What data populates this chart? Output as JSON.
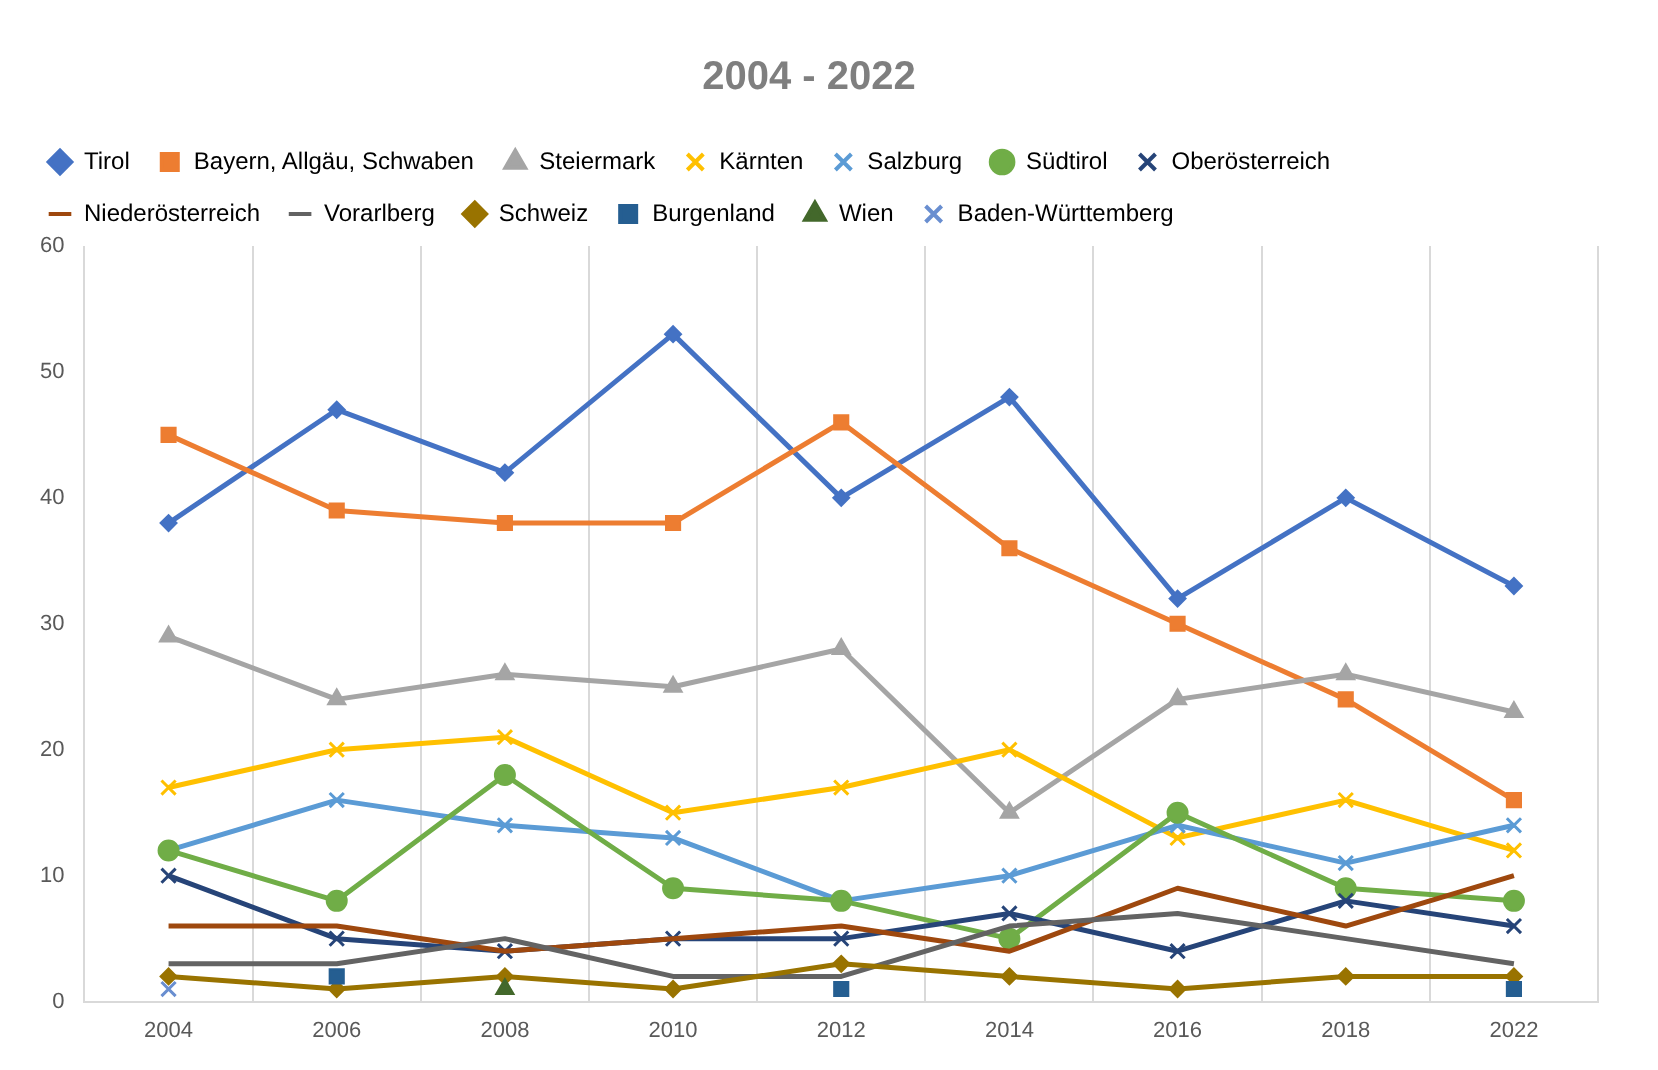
{
  "chart_data": {
    "type": "line",
    "title": "2004 - 2022",
    "categories": [
      "2004",
      "2006",
      "2008",
      "2010",
      "2012",
      "2014",
      "2016",
      "2018",
      "2022"
    ],
    "ylim": [
      0,
      60
    ],
    "yticks": [
      0,
      10,
      20,
      30,
      40,
      50,
      60
    ],
    "grid": "x",
    "legend": "top",
    "series": [
      {
        "name": "Tirol",
        "color": "#4472c4",
        "marker": "diamond",
        "values": [
          38,
          47,
          42,
          53,
          40,
          48,
          32,
          40,
          33
        ]
      },
      {
        "name": "Bayern, Allgäu, Schwaben",
        "color": "#ed7d31",
        "marker": "square",
        "values": [
          45,
          39,
          38,
          38,
          46,
          36,
          30,
          24,
          16
        ]
      },
      {
        "name": "Steiermark",
        "color": "#a5a5a5",
        "marker": "triangle",
        "values": [
          29,
          24,
          26,
          25,
          28,
          15,
          24,
          26,
          23
        ]
      },
      {
        "name": "Kärnten",
        "color": "#ffc000",
        "marker": "cross",
        "values": [
          17,
          20,
          21,
          15,
          17,
          20,
          13,
          16,
          12
        ]
      },
      {
        "name": "Salzburg",
        "color": "#5b9bd5",
        "marker": "cross",
        "values": [
          12,
          16,
          14,
          13,
          8,
          10,
          14,
          11,
          14
        ]
      },
      {
        "name": "Südtirol",
        "color": "#70ad47",
        "marker": "circle",
        "values": [
          12,
          8,
          18,
          9,
          8,
          5,
          15,
          9,
          8
        ]
      },
      {
        "name": "Oberösterreich",
        "color": "#264478",
        "marker": "cross",
        "values": [
          10,
          5,
          4,
          5,
          5,
          7,
          4,
          8,
          6
        ]
      },
      {
        "name": "Niederösterreich",
        "color": "#9e480e",
        "marker": "none",
        "values": [
          6,
          6,
          4,
          5,
          6,
          4,
          9,
          6,
          10
        ]
      },
      {
        "name": "Vorarlberg",
        "color": "#636363",
        "marker": "none",
        "values": [
          3,
          3,
          5,
          2,
          2,
          6,
          7,
          5,
          3
        ]
      },
      {
        "name": "Schweiz",
        "color": "#997300",
        "marker": "diamond",
        "values": [
          2,
          1,
          2,
          1,
          3,
          2,
          1,
          2,
          2
        ]
      },
      {
        "name": "Burgenland",
        "type": "scatter",
        "color": "#255e91",
        "marker": "square",
        "values": [
          null,
          2,
          null,
          null,
          1,
          null,
          null,
          null,
          1
        ]
      },
      {
        "name": "Wien",
        "type": "scatter",
        "color": "#43682b",
        "marker": "triangle",
        "values": [
          null,
          null,
          1,
          null,
          null,
          null,
          null,
          null,
          null
        ]
      },
      {
        "name": "Baden-Württemberg",
        "type": "scatter",
        "color": "#698ed0",
        "marker": "cross",
        "values": [
          1,
          null,
          null,
          null,
          null,
          null,
          null,
          null,
          null
        ]
      }
    ]
  }
}
